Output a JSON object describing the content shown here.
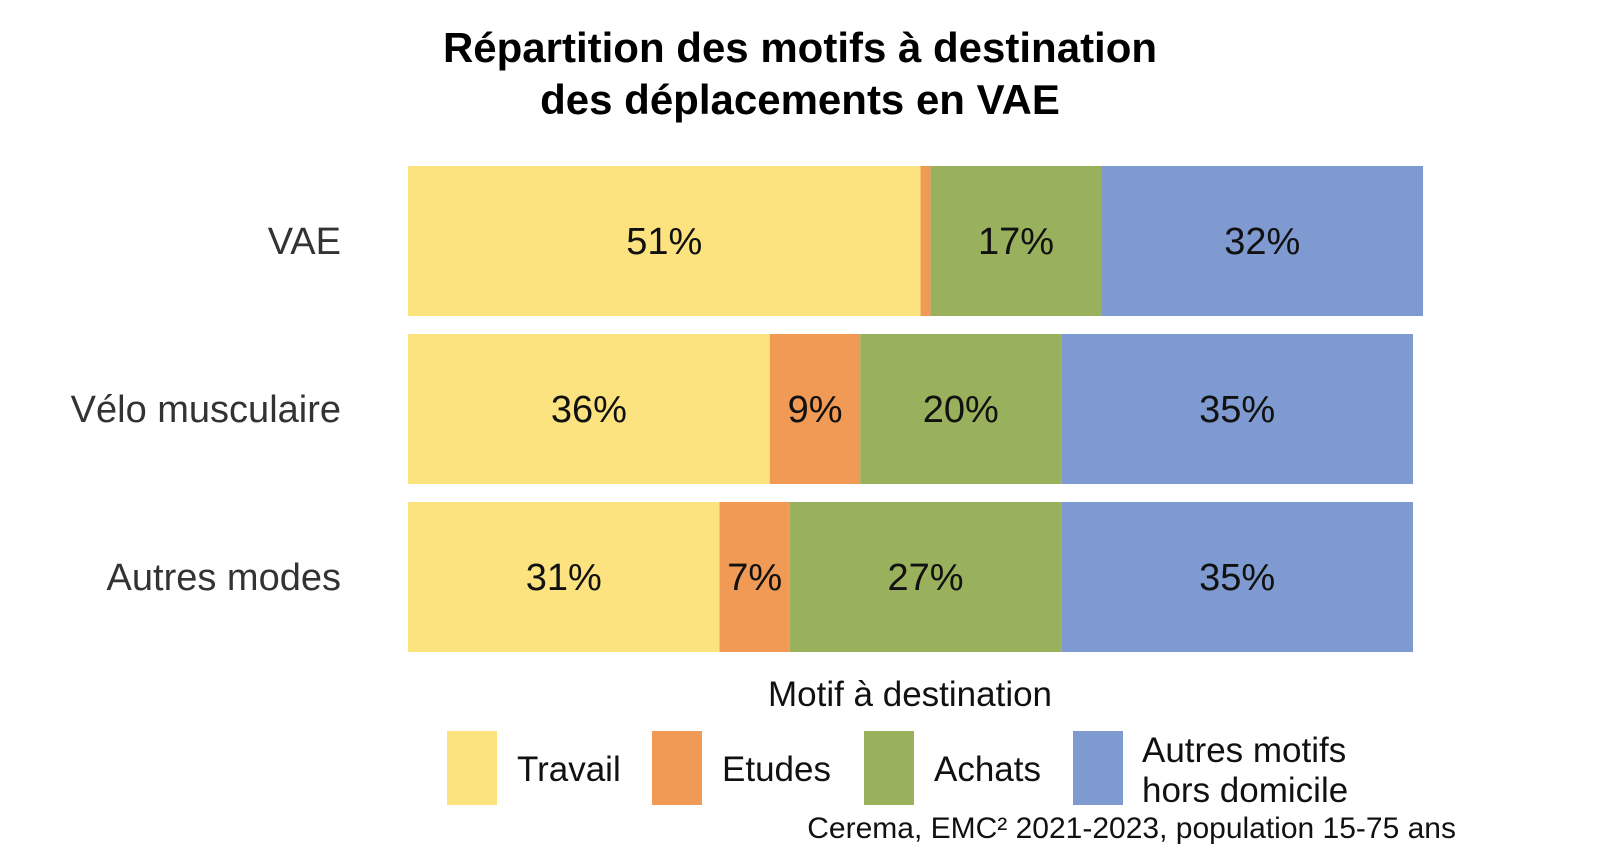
{
  "chart_data": {
    "type": "bar",
    "orientation": "horizontal",
    "stacked": true,
    "percent": true,
    "title_lines": [
      "Répartition des motifs à destination",
      "des déplacements en VAE"
    ],
    "categories": [
      "VAE",
      "Vélo musculaire",
      "Autres modes"
    ],
    "legend_title": "Motif à destination",
    "legend_position": "bottom",
    "series": [
      {
        "name": "Travail",
        "legend_lines": [
          "Travail"
        ],
        "color": "#fce37f",
        "values": [
          51,
          36,
          31
        ],
        "labels": [
          "51%",
          "36%",
          "31%"
        ]
      },
      {
        "name": "Etudes",
        "legend_lines": [
          "Etudes"
        ],
        "color": "#f09a55",
        "values": [
          1,
          9,
          7
        ],
        "labels": [
          "",
          "9%",
          "7%"
        ]
      },
      {
        "name": "Achats",
        "legend_lines": [
          "Achats"
        ],
        "color": "#99b05c",
        "values": [
          17,
          20,
          27
        ],
        "labels": [
          "17%",
          "20%",
          "27%"
        ]
      },
      {
        "name": "Autres motifs hors domicile",
        "legend_lines": [
          "Autres motifs",
          "hors domicile"
        ],
        "color": "#7f99d1",
        "values": [
          32,
          35,
          35
        ],
        "labels": [
          "32%",
          "35%",
          "35%"
        ]
      }
    ],
    "xlim": [
      0,
      100
    ],
    "grid": false,
    "source": "Cerema, EMC² 2021-2023, population 15-75 ans"
  }
}
